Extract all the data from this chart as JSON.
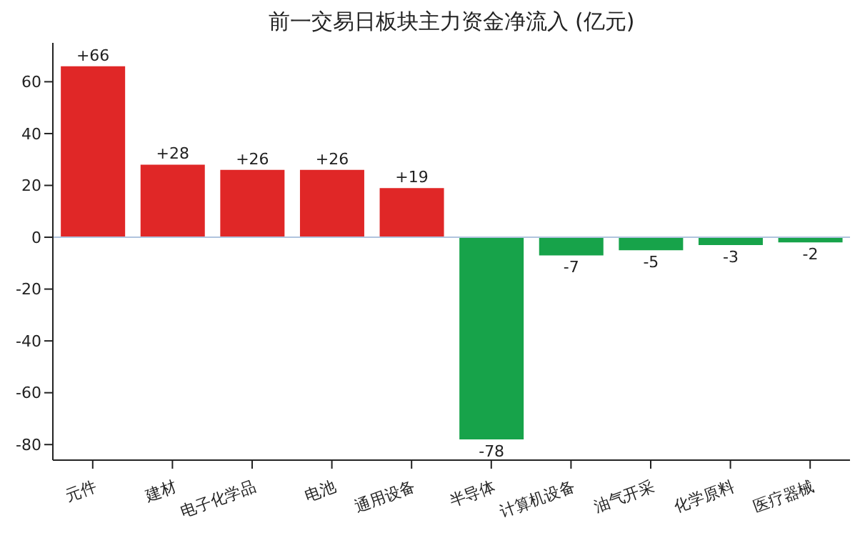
{
  "chart_data": {
    "type": "bar",
    "title": "前一交易日板块主力资金净流入 (亿元)",
    "categories": [
      "元件",
      "建材",
      "电子化学品",
      "电池",
      "通用设备",
      "半导体",
      "计算机设备",
      "油气开采",
      "化学原料",
      "医疗器械"
    ],
    "values": [
      66,
      28,
      26,
      26,
      19,
      -78,
      -7,
      -5,
      -3,
      -2
    ],
    "value_labels": [
      "+66",
      "+28",
      "+26",
      "+26",
      "+19",
      "-78",
      "-7",
      "-5",
      "-3",
      "-2"
    ],
    "colors": [
      "#e02727",
      "#e02727",
      "#e02727",
      "#e02727",
      "#e02727",
      "#17a34a",
      "#17a34a",
      "#17a34a",
      "#17a34a",
      "#17a34a"
    ],
    "ylim": [
      -86,
      75
    ],
    "yticks": [
      -80,
      -60,
      -40,
      -20,
      0,
      20,
      40,
      60
    ],
    "ref_lines": [
      {
        "axis": "y",
        "value": 0,
        "color": "#b0c4de"
      }
    ],
    "grid": false
  }
}
